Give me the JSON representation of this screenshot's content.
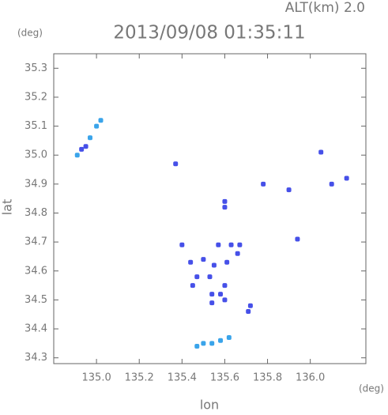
{
  "chart_data": {
    "type": "scatter",
    "title": "2013/09/08 01:35:11",
    "subtitle": "ALT(km) 2.0",
    "y_unit": "(deg)",
    "x_unit": "(deg)",
    "xlabel": "lon",
    "ylabel": "lat",
    "xlim": [
      134.8,
      136.26
    ],
    "ylim": [
      34.28,
      35.35
    ],
    "xticks": [
      {
        "value": 135.0,
        "label": "135.0"
      },
      135.2,
      135.4,
      135.6,
      135.8,
      {
        "value": 136.0,
        "label": "136.0"
      }
    ],
    "yticks": [
      34.3,
      34.4,
      34.5,
      34.6,
      34.7,
      34.8,
      34.9,
      {
        "value": 35.0,
        "label": "35.0"
      },
      35.1,
      35.2,
      35.3
    ],
    "series": [
      {
        "color": "#4650e8",
        "x": [
          134.93,
          134.95,
          135.37,
          136.05,
          136.1,
          136.17,
          135.78,
          135.9,
          135.6,
          135.6,
          135.94,
          135.4,
          135.44,
          135.57,
          135.63,
          135.67,
          135.66,
          135.61,
          135.55,
          135.5,
          135.47,
          135.6,
          135.58,
          135.6,
          135.54,
          135.54,
          135.45,
          135.53,
          135.72,
          135.71
        ],
        "values": [
          35.02,
          35.03,
          34.97,
          35.01,
          34.9,
          34.92,
          34.9,
          34.88,
          34.84,
          34.82,
          34.71,
          34.69,
          34.63,
          34.69,
          34.69,
          34.69,
          34.66,
          34.63,
          34.62,
          34.64,
          34.58,
          34.55,
          34.52,
          34.5,
          34.52,
          34.49,
          34.55,
          34.58,
          34.48,
          34.46
        ]
      },
      {
        "color": "#3aa4ea",
        "x": [
          134.97,
          135.0,
          135.02,
          134.91,
          135.47,
          135.5,
          135.54,
          135.58,
          135.62
        ],
        "values": [
          35.06,
          35.1,
          35.12,
          35.0,
          34.34,
          34.35,
          34.35,
          34.36,
          34.37
        ]
      }
    ]
  }
}
